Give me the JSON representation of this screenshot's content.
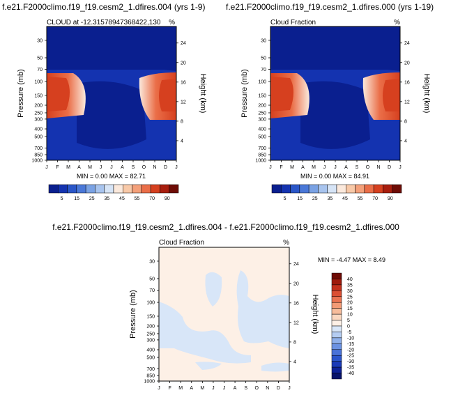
{
  "chart_data": [
    {
      "type": "heatmap",
      "title": "f.e21.F2000climo.f19_f19.cesm2_1.dfires.004 (yrs 1-9)",
      "subtitle_left": "CLOUD at -12.31578947368422,130",
      "subtitle_right": "%",
      "ylabel": "Pressure (mb)",
      "ylabel_right": "Height (km)",
      "pressure_ticks": [
        "30",
        "50",
        "70",
        "100",
        "150",
        "200",
        "250",
        "300",
        "400",
        "500",
        "700",
        "850",
        "1000"
      ],
      "height_ticks": [
        "24",
        "20",
        "16",
        "12",
        "8",
        "4"
      ],
      "months": [
        "J",
        "F",
        "M",
        "A",
        "M",
        "J",
        "J",
        "A",
        "S",
        "O",
        "N",
        "D",
        "J"
      ],
      "stats": "MIN =  0.00 MAX =  82.71",
      "min": 0.0,
      "max": 82.71,
      "colorbar_labels": [
        "5",
        "15",
        "25",
        "35",
        "45",
        "55",
        "70",
        "90"
      ]
    },
    {
      "type": "heatmap",
      "title": "f.e21.F2000climo.f19_f19.cesm2_1.dfires.000 (yrs 1-19)",
      "subtitle_left": "Cloud Fraction",
      "subtitle_right": "%",
      "ylabel": "Pressure (mb)",
      "ylabel_right": "Height (km)",
      "pressure_ticks": [
        "30",
        "50",
        "70",
        "100",
        "150",
        "200",
        "250",
        "300",
        "400",
        "500",
        "700",
        "850",
        "1000"
      ],
      "height_ticks": [
        "24",
        "20",
        "16",
        "12",
        "8",
        "4"
      ],
      "months": [
        "J",
        "F",
        "M",
        "A",
        "M",
        "J",
        "J",
        "A",
        "S",
        "O",
        "N",
        "D",
        "J"
      ],
      "stats": "MIN =  0.00 MAX =  84.91",
      "min": 0.0,
      "max": 84.91,
      "colorbar_labels": [
        "5",
        "15",
        "25",
        "35",
        "45",
        "55",
        "70",
        "90"
      ]
    },
    {
      "type": "heatmap",
      "title": "f.e21.F2000climo.f19_f19.cesm2_1.dfires.004 - f.e21.F2000climo.f19_f19.cesm2_1.dfires.000",
      "subtitle_left": "Cloud Fraction",
      "subtitle_right": "%",
      "ylabel": "Pressure (mb)",
      "ylabel_right": "Height (km)",
      "pressure_ticks": [
        "30",
        "50",
        "70",
        "100",
        "150",
        "200",
        "250",
        "300",
        "400",
        "500",
        "700",
        "850",
        "1000"
      ],
      "height_ticks": [
        "24",
        "20",
        "16",
        "12",
        "8",
        "4"
      ],
      "months": [
        "J",
        "F",
        "M",
        "A",
        "M",
        "J",
        "J",
        "A",
        "S",
        "O",
        "N",
        "D",
        "J"
      ],
      "stats": "MIN =  -4.47 MAX =  8.49",
      "min": -4.47,
      "max": 8.49,
      "colorbar_labels": [
        "40",
        "35",
        "30",
        "25",
        "20",
        "15",
        "10",
        "5",
        "0",
        "-5",
        "-10",
        "-15",
        "-20",
        "-25",
        "-30",
        "-35",
        "-40"
      ]
    }
  ],
  "colors": {
    "abs_scale": [
      "#0a1f8f",
      "#1433b0",
      "#2a56c8",
      "#4a78d8",
      "#7aa2e4",
      "#a8c4ee",
      "#d6e4f6",
      "#fbe9dc",
      "#f8c9a8",
      "#f4a07a",
      "#ea6e48",
      "#d6401f",
      "#a81e0e",
      "#6e0c06"
    ],
    "diff_scale": [
      "#08136a",
      "#0d2196",
      "#1a3ab8",
      "#2b55cb",
      "#4a73d8",
      "#6b92e2",
      "#8fb0ea",
      "#b5cdf2",
      "#d8e6f8",
      "#fdf0e6",
      "#fad7c0",
      "#f7bc9b",
      "#f39b76",
      "#ea7452",
      "#db4f33",
      "#c3301c",
      "#9e1a0c",
      "#6e0b05"
    ]
  }
}
